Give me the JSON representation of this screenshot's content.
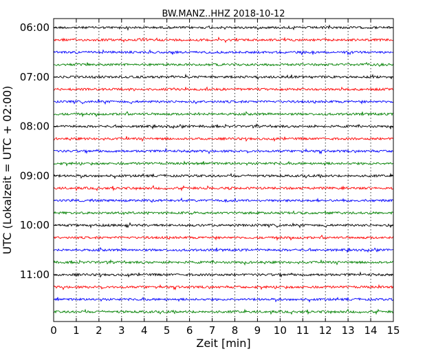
{
  "chart_data": {
    "type": "line",
    "title": "BW.MANZ..HHZ 2018-10-12",
    "xlabel": "Zeit  [min]",
    "ylabel": "UTC (Lokalzeit = UTC + 02:00)",
    "xlim": [
      0,
      15
    ],
    "x_ticks": [
      "0",
      "1",
      "2",
      "3",
      "4",
      "5",
      "6",
      "7",
      "8",
      "9",
      "10",
      "11",
      "12",
      "13",
      "14",
      "15"
    ],
    "y_ticks": [
      "06:00",
      "07:00",
      "08:00",
      "09:00",
      "10:00",
      "11:00"
    ],
    "vertical_grid": "dotted",
    "trace_count": 24,
    "trace_interval_min": 15,
    "trace_colors": [
      "#000000",
      "#ff0000",
      "#0000ff",
      "#008000"
    ],
    "traces": [
      {
        "start": "06:00",
        "color": "#000000"
      },
      {
        "start": "06:15",
        "color": "#ff0000"
      },
      {
        "start": "06:30",
        "color": "#0000ff"
      },
      {
        "start": "06:45",
        "color": "#008000"
      },
      {
        "start": "07:00",
        "color": "#000000"
      },
      {
        "start": "07:15",
        "color": "#ff0000"
      },
      {
        "start": "07:30",
        "color": "#0000ff"
      },
      {
        "start": "07:45",
        "color": "#008000"
      },
      {
        "start": "08:00",
        "color": "#000000"
      },
      {
        "start": "08:15",
        "color": "#ff0000"
      },
      {
        "start": "08:30",
        "color": "#0000ff"
      },
      {
        "start": "08:45",
        "color": "#008000"
      },
      {
        "start": "09:00",
        "color": "#000000"
      },
      {
        "start": "09:15",
        "color": "#ff0000"
      },
      {
        "start": "09:30",
        "color": "#0000ff"
      },
      {
        "start": "09:45",
        "color": "#008000"
      },
      {
        "start": "10:00",
        "color": "#000000"
      },
      {
        "start": "10:15",
        "color": "#ff0000"
      },
      {
        "start": "10:30",
        "color": "#0000ff"
      },
      {
        "start": "10:45",
        "color": "#008000"
      },
      {
        "start": "11:00",
        "color": "#000000"
      },
      {
        "start": "11:15",
        "color": "#ff0000"
      },
      {
        "start": "11:30",
        "color": "#0000ff"
      },
      {
        "start": "11:45",
        "color": "#008000"
      }
    ]
  }
}
